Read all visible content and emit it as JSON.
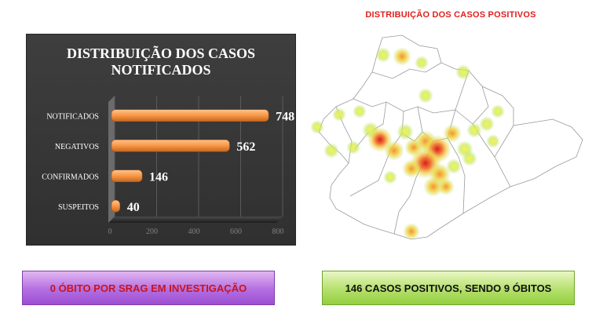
{
  "map": {
    "title": "DISTRIBUIÇÃO DOS CASOS POSITIVOS"
  },
  "chart_data": {
    "type": "bar",
    "orientation": "horizontal",
    "title": "DISTRIBUIÇÃO DOS CASOS NOTIFICADOS",
    "categories": [
      "NOTIFICADOS",
      "NEGATIVOS",
      "CONFIRMADOS",
      "SUSPEITOS"
    ],
    "values": [
      748,
      562,
      146,
      40
    ],
    "value_labels": [
      "748",
      "562",
      "146",
      "40"
    ],
    "xticks": [
      "0",
      "200",
      "400",
      "600",
      "800"
    ],
    "xlim": [
      0,
      800
    ],
    "grid": true,
    "bar_color": "#f79646",
    "background": "#353535"
  },
  "banners": {
    "left": "0 ÓBITO POR SRAG EM INVESTIGAÇÃO",
    "right": "146 CASOS POSITIVOS, SENDO 9 ÓBITOS"
  }
}
